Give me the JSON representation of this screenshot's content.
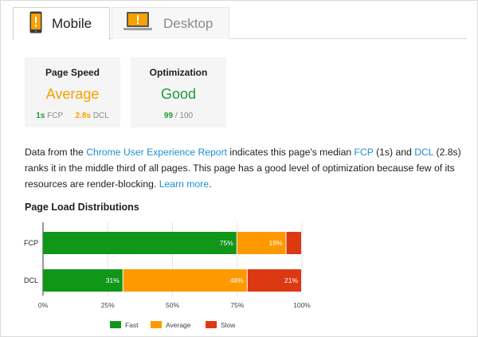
{
  "tabs": [
    {
      "label": "Mobile",
      "icon": "mobile-phone-icon",
      "active": true
    },
    {
      "label": "Desktop",
      "icon": "laptop-icon",
      "active": false
    }
  ],
  "cards": {
    "speed": {
      "title": "Page Speed",
      "value": "Average",
      "fcp_value": "1s",
      "fcp_label": "FCP",
      "dcl_value": "2.8s",
      "dcl_label": "DCL"
    },
    "optimization": {
      "title": "Optimization",
      "value": "Good",
      "score": "99",
      "score_max": "/ 100"
    }
  },
  "description": {
    "p1": "Data from the ",
    "link_report": "Chrome User Experience Report",
    "p2": " indicates this page's median ",
    "link_fcp": "FCP",
    "p3": " (1s) and ",
    "link_dcl": "DCL",
    "p4": " (2.8s) ranks it in the middle third of all pages. This page has a good level of optimization because few of its resources are render-blocking. ",
    "link_learn": "Learn more",
    "p5": "."
  },
  "section_title": "Page Load Distributions",
  "colors": {
    "fast": "#109618",
    "average": "#ff9900",
    "slow": "#dc3912"
  },
  "chart_data": {
    "type": "bar",
    "orientation": "horizontal",
    "stacked": true,
    "categories": [
      "FCP",
      "DCL"
    ],
    "series": [
      {
        "name": "Fast",
        "values": [
          75,
          31
        ],
        "labels": [
          "75%",
          "31%"
        ]
      },
      {
        "name": "Average",
        "values": [
          19,
          48
        ],
        "labels": [
          "19%",
          "48%"
        ]
      },
      {
        "name": "Slow",
        "values": [
          6,
          21
        ],
        "labels": [
          "",
          "21%"
        ]
      }
    ],
    "xticks": [
      "0%",
      "25%",
      "50%",
      "75%",
      "100%"
    ],
    "xlim": [
      0,
      100
    ],
    "legend_position": "bottom",
    "grid": true
  }
}
